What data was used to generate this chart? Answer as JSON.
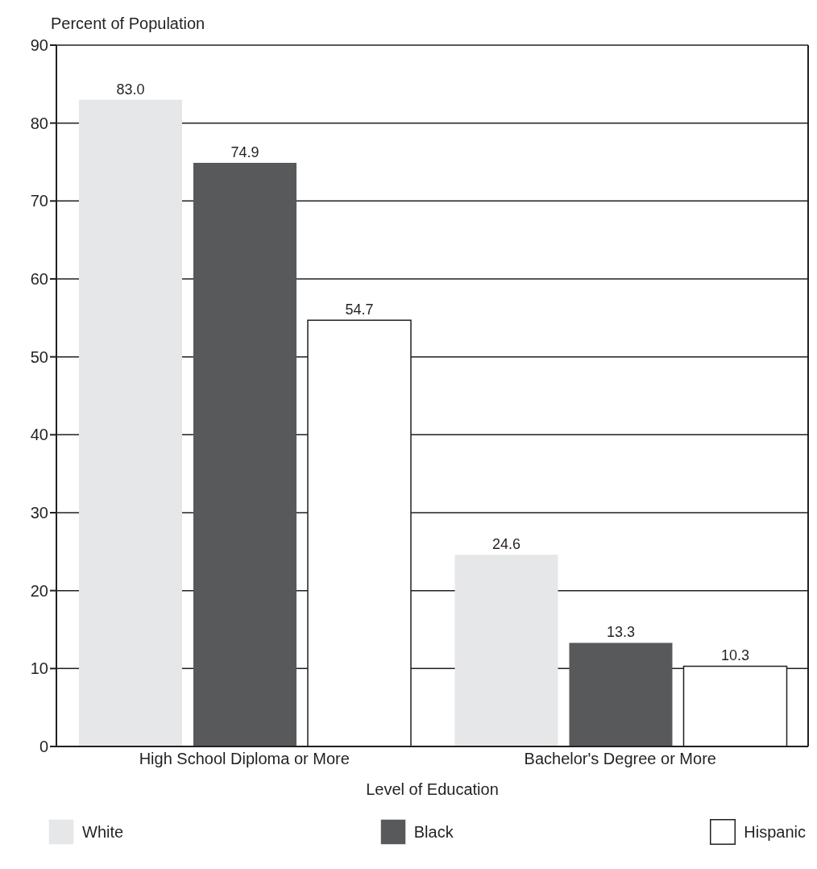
{
  "chart_data": {
    "type": "bar",
    "ylabel": "Percent of Population",
    "xlabel": "Level of Education",
    "categories": [
      "High School Diploma or More",
      "Bachelor's Degree or More"
    ],
    "series": [
      {
        "name": "White",
        "color": "#e6e7e8",
        "values": [
          83.0,
          24.6
        ],
        "value_labels": [
          "83.0",
          "24.6"
        ]
      },
      {
        "name": "Black",
        "color": "#58595b",
        "values": [
          74.9,
          13.3
        ],
        "value_labels": [
          "74.9",
          "13.3"
        ]
      },
      {
        "name": "Hispanic",
        "color": "#ffffff",
        "values": [
          54.7,
          10.3
        ],
        "value_labels": [
          "54.7",
          "10.3"
        ]
      }
    ],
    "ylim": [
      0,
      90
    ],
    "yticks": [
      0,
      10,
      20,
      30,
      40,
      50,
      60,
      70,
      80,
      90
    ],
    "grid": "y",
    "legend": "bottom"
  }
}
